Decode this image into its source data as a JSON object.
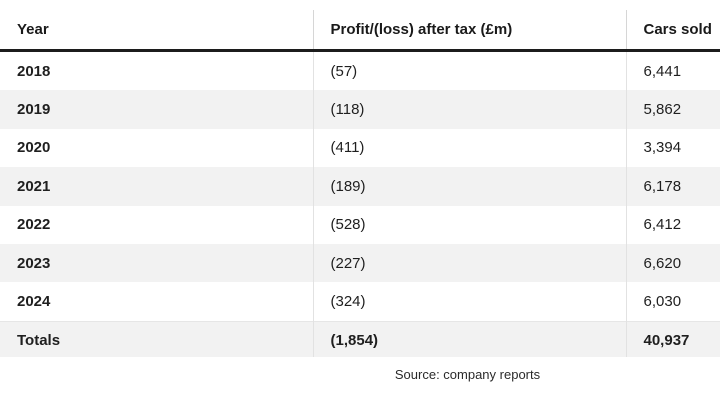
{
  "table": {
    "headers": [
      "Year",
      "Profit/(loss) after tax (£m)",
      "Cars sold"
    ],
    "rows": [
      {
        "year": "2018",
        "profit": "(57)",
        "cars": "6,441"
      },
      {
        "year": "2019",
        "profit": "(118)",
        "cars": "5,862"
      },
      {
        "year": "2020",
        "profit": "(411)",
        "cars": "3,394"
      },
      {
        "year": "2021",
        "profit": "(189)",
        "cars": "6,178"
      },
      {
        "year": "2022",
        "profit": "(528)",
        "cars": "6,412"
      },
      {
        "year": "2023",
        "profit": "(227)",
        "cars": "6,620"
      },
      {
        "year": "2024",
        "profit": "(324)",
        "cars": "6,030"
      }
    ],
    "totals": {
      "label": "Totals",
      "profit": "(1,854)",
      "cars": "40,937"
    }
  },
  "source": "Source: company reports",
  "colors": {
    "header_rule": "#1c1c1c",
    "stripe": "#f2f2f2"
  }
}
